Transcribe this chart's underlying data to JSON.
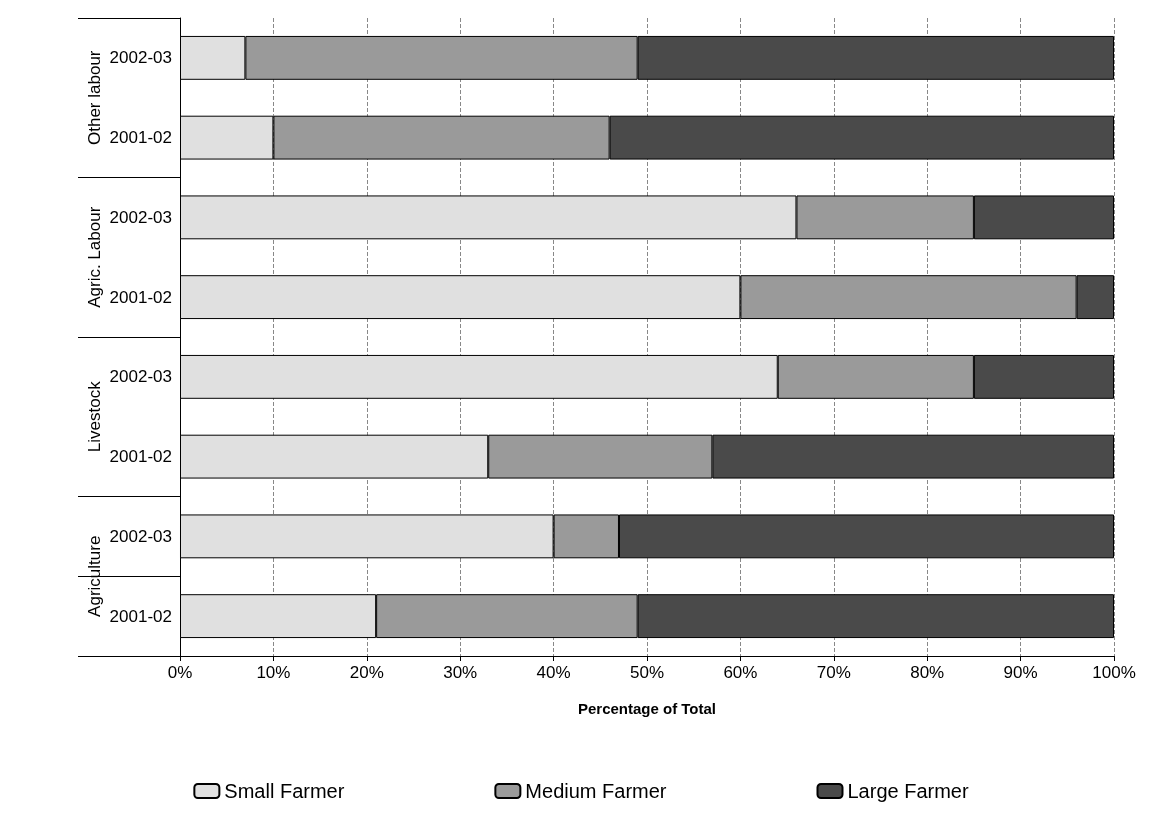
{
  "chart_data": {
    "type": "bar",
    "orientation": "horizontal",
    "stacked": true,
    "xlabel": "Percentage of Total",
    "categories": [
      "2002-03",
      "2001-02",
      "2002-03",
      "2001-02",
      "2002-03",
      "2001-02",
      "2002-03",
      "2001-02"
    ],
    "annotations": [
      "Other labour",
      "Agric. Labour",
      "Livestock",
      "Agriculture"
    ],
    "series": [
      {
        "name": "Small Farmer",
        "color": "#e0e0e0",
        "values": [
          7,
          10,
          66,
          60,
          64,
          33,
          40,
          21
        ]
      },
      {
        "name": "Medium Farmer",
        "color": "#9a9a9a",
        "values": [
          42,
          36,
          19,
          36,
          21,
          24,
          7,
          28
        ]
      },
      {
        "name": "Large Farmer",
        "color": "#4a4a4a",
        "values": [
          51,
          54,
          15,
          4,
          15,
          43,
          53,
          51
        ]
      }
    ],
    "xlim": [
      0,
      100
    ],
    "xticks": [
      {
        "value": 0,
        "label": "0%"
      },
      {
        "value": 10,
        "label": "10%"
      },
      {
        "value": 20,
        "label": "20%"
      },
      {
        "value": 30,
        "label": "30%"
      },
      {
        "value": 40,
        "label": "40%"
      },
      {
        "value": 50,
        "label": "50%"
      },
      {
        "value": 60,
        "label": "60%"
      },
      {
        "value": 70,
        "label": "70%"
      },
      {
        "value": 80,
        "label": "80%"
      },
      {
        "value": 90,
        "label": "90%"
      },
      {
        "value": 100,
        "label": "100%"
      }
    ],
    "grid": "x",
    "legend": "bottom"
  }
}
